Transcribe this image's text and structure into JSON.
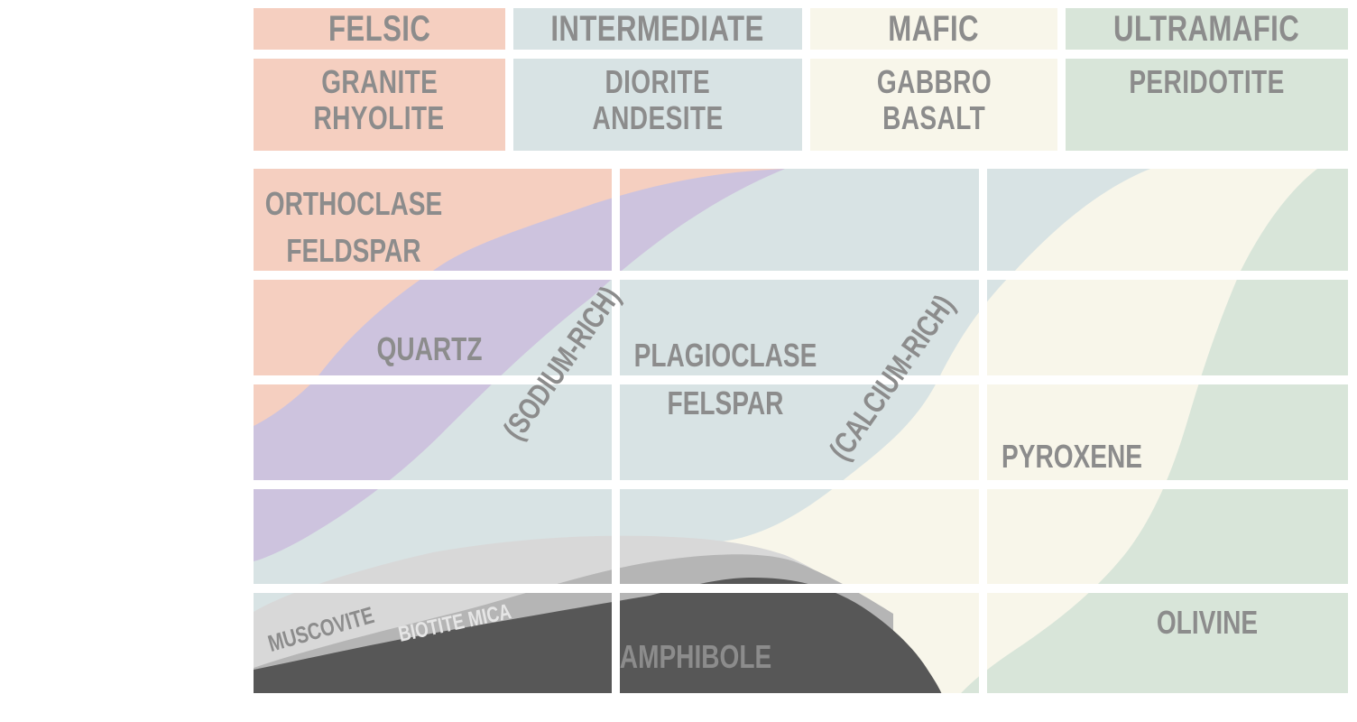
{
  "colors": {
    "felsic": "#f5cfc0",
    "intermediate": "#d8e3e4",
    "mafic": "#f8f6ea",
    "ultramafic": "#d8e5d9",
    "quartz": "#cdc3de",
    "muscovite": "#d8d8d8",
    "biotite": "#b5b5b5",
    "amphibole": "#575757",
    "text": "#8c8c8c"
  },
  "groups": [
    {
      "name": "FELSIC",
      "rocks": [
        "GRANITE",
        "RHYOLITE"
      ]
    },
    {
      "name": "INTERMEDIATE",
      "rocks": [
        "DIORITE",
        "ANDESITE"
      ]
    },
    {
      "name": "MAFIC",
      "rocks": [
        "GABBRO",
        "BASALT"
      ]
    },
    {
      "name": "ULTRAMAFIC",
      "rocks": [
        "PERIDOTITE"
      ]
    }
  ],
  "minerals": {
    "orthoclase": [
      "ORTHOCLASE",
      "FELDSPAR"
    ],
    "quartz": "QUARTZ",
    "sodium_rich": "(SODIUM-RICH)",
    "plagioclase": [
      "PLAGIOCLASE",
      "FELSPAR"
    ],
    "calcium_rich": "(CALCIUM-RICH)",
    "pyroxene": "PYROXENE",
    "muscovite": "MUSCOVITE",
    "biotite": "BIOTITE MICA",
    "amphibole": "AMPHIBOLE",
    "olivine": "OLIVINE"
  }
}
